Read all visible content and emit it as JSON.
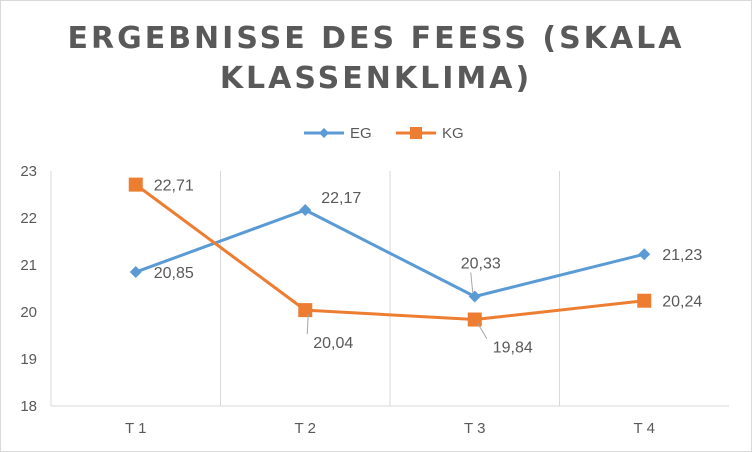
{
  "chart_data": {
    "type": "line",
    "title_line1": "ERGEBNISSE  DES FEESS (SKALA",
    "title_line2": "KLASSENKLIMA)",
    "categories": [
      "T 1",
      "T 2",
      "T 3",
      "T 4"
    ],
    "ylim": [
      18,
      23
    ],
    "yticks": [
      "18",
      "19",
      "20",
      "21",
      "22",
      "23"
    ],
    "grid": "vertical",
    "legend": "top",
    "series": [
      {
        "name": "EG",
        "color": "#5b9bd5",
        "marker": "diamond",
        "values": [
          20.85,
          22.17,
          20.33,
          21.23
        ],
        "labels": [
          "20,85",
          "22,17",
          "20,33",
          "21,23"
        ]
      },
      {
        "name": "KG",
        "color": "#ed7d31",
        "marker": "square",
        "values": [
          22.71,
          20.04,
          19.84,
          20.24
        ],
        "labels": [
          "22,71",
          "20,04",
          "19,84",
          "20,24"
        ]
      }
    ]
  }
}
